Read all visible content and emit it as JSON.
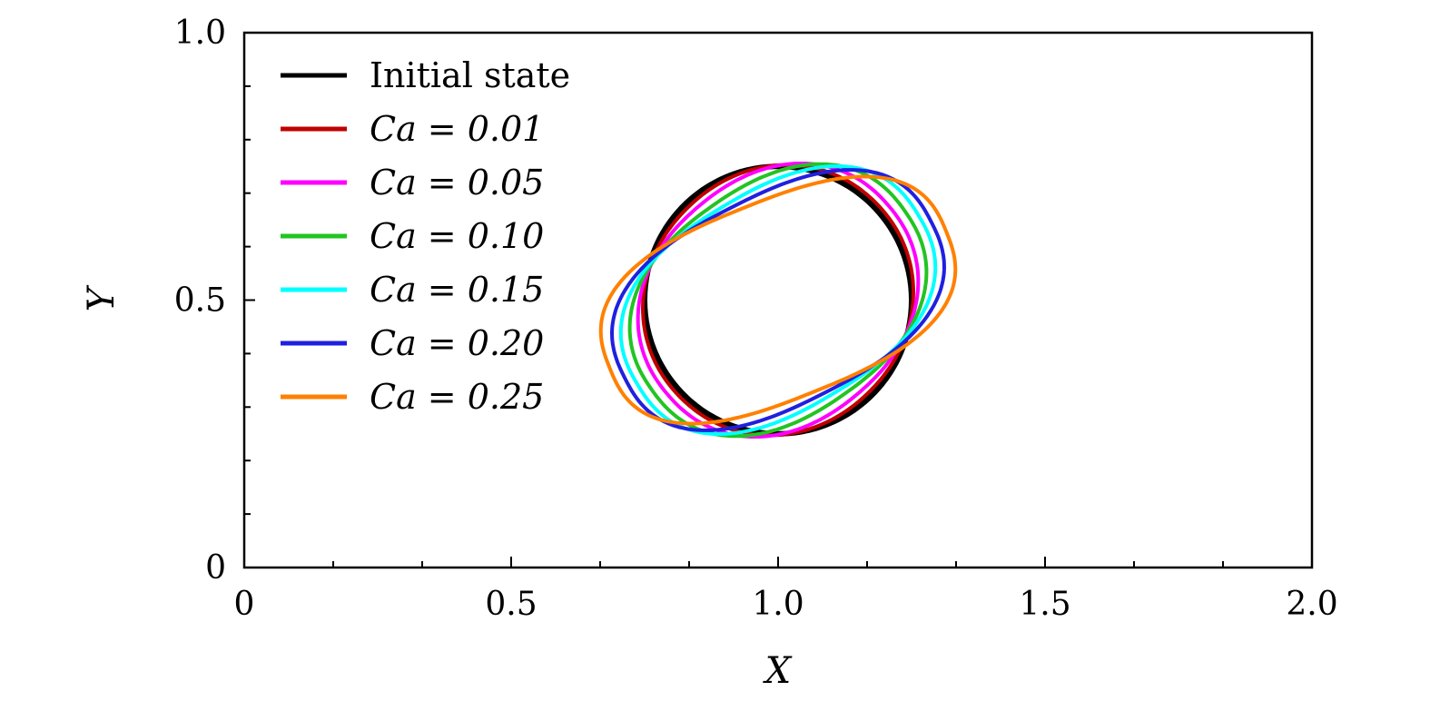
{
  "chart_data": {
    "type": "line",
    "title": "",
    "xlabel": "X",
    "ylabel": "Y",
    "xlim": [
      0,
      2.0
    ],
    "ylim": [
      0,
      1.0
    ],
    "xticks": [
      {
        "v": 0,
        "label": "0"
      },
      {
        "v": 0.5,
        "label": "0.5"
      },
      {
        "v": 1.0,
        "label": "1.0"
      },
      {
        "v": 1.5,
        "label": "1.5"
      },
      {
        "v": 2.0,
        "label": "2.0"
      }
    ],
    "yticks": [
      {
        "v": 0,
        "label": "0"
      },
      {
        "v": 0.5,
        "label": "0.5"
      },
      {
        "v": 1.0,
        "label": "1.0"
      }
    ],
    "grid": false,
    "legend_position": "top-left",
    "series": [
      {
        "name": "Initial state",
        "legend": "Initial state",
        "color": "#000000",
        "center": [
          1.0,
          0.5
        ],
        "semi_major": 0.25,
        "semi_minor": 0.25,
        "angle_deg": 45
      },
      {
        "name": "Ca = 0.01",
        "legend": "Ca = 0.01",
        "color": "#c00000",
        "center": [
          1.0,
          0.5
        ],
        "semi_major": 0.258,
        "semi_minor": 0.242,
        "angle_deg": 44
      },
      {
        "name": "Ca = 0.05",
        "legend": "Ca = 0.05",
        "color": "#ff00ff",
        "center": [
          1.0,
          0.5
        ],
        "semi_major": 0.272,
        "semi_minor": 0.23,
        "angle_deg": 40
      },
      {
        "name": "Ca = 0.10",
        "legend": "Ca = 0.10",
        "color": "#22c422",
        "center": [
          1.0,
          0.5
        ],
        "semi_major": 0.29,
        "semi_minor": 0.215,
        "angle_deg": 35
      },
      {
        "name": "Ca = 0.15",
        "legend": "Ca = 0.15",
        "color": "#00ffff",
        "center": [
          1.0,
          0.5
        ],
        "semi_major": 0.307,
        "semi_minor": 0.203,
        "angle_deg": 31
      },
      {
        "name": "Ca = 0.20",
        "legend": "Ca = 0.20",
        "color": "#2020e0",
        "center": [
          1.0,
          0.5
        ],
        "semi_major": 0.322,
        "semi_minor": 0.194,
        "angle_deg": 27
      },
      {
        "name": "Ca = 0.25",
        "legend": "Ca = 0.25",
        "color": "#ff8000",
        "center": [
          1.0,
          0.5
        ],
        "semi_major": 0.34,
        "semi_minor": 0.184,
        "angle_deg": 22
      }
    ]
  }
}
